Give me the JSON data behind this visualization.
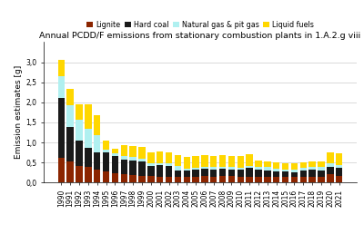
{
  "title": "Annual PCDD/F emissions from stationary combustion plants in 1.A.2.g viii",
  "ylabel": "Emission estimates [g]",
  "years": [
    1990,
    1991,
    1992,
    1993,
    1994,
    1995,
    1996,
    1997,
    1998,
    1999,
    2000,
    2001,
    2002,
    2003,
    2004,
    2005,
    2006,
    2007,
    2008,
    2009,
    2010,
    2011,
    2012,
    2013,
    2014,
    2015,
    2016,
    2017,
    2018,
    2019,
    2020,
    2021
  ],
  "lignite": [
    0.62,
    0.52,
    0.42,
    0.38,
    0.33,
    0.28,
    0.24,
    0.2,
    0.19,
    0.17,
    0.16,
    0.15,
    0.15,
    0.15,
    0.15,
    0.14,
    0.16,
    0.15,
    0.16,
    0.16,
    0.15,
    0.15,
    0.15,
    0.15,
    0.13,
    0.13,
    0.13,
    0.14,
    0.15,
    0.14,
    0.22,
    0.16
  ],
  "hard_coal": [
    1.48,
    0.86,
    0.63,
    0.48,
    0.43,
    0.47,
    0.42,
    0.37,
    0.36,
    0.35,
    0.25,
    0.28,
    0.27,
    0.16,
    0.15,
    0.18,
    0.18,
    0.17,
    0.19,
    0.17,
    0.17,
    0.22,
    0.17,
    0.16,
    0.15,
    0.14,
    0.13,
    0.15,
    0.17,
    0.17,
    0.18,
    0.2
  ],
  "natural_gas": [
    0.55,
    0.55,
    0.52,
    0.48,
    0.42,
    0.08,
    0.08,
    0.08,
    0.08,
    0.08,
    0.06,
    0.06,
    0.05,
    0.1,
    0.05,
    0.05,
    0.06,
    0.06,
    0.05,
    0.06,
    0.05,
    0.05,
    0.07,
    0.07,
    0.07,
    0.06,
    0.07,
    0.07,
    0.06,
    0.07,
    0.07,
    0.08
  ],
  "liquid_fuels": [
    0.4,
    0.4,
    0.38,
    0.62,
    0.5,
    0.22,
    0.1,
    0.28,
    0.27,
    0.28,
    0.28,
    0.28,
    0.28,
    0.28,
    0.28,
    0.28,
    0.28,
    0.28,
    0.28,
    0.28,
    0.28,
    0.28,
    0.15,
    0.15,
    0.15,
    0.15,
    0.15,
    0.15,
    0.15,
    0.15,
    0.28,
    0.28
  ],
  "colors": {
    "lignite": "#8B2500",
    "hard_coal": "#1a1a1a",
    "natural_gas": "#b0f0f0",
    "liquid_fuels": "#FFD700"
  },
  "ylim": [
    0,
    3.5
  ],
  "yticks": [
    0.0,
    0.5,
    1.0,
    1.5,
    2.0,
    2.5,
    3.0
  ],
  "ytick_labels": [
    "0,0",
    "0,5",
    "1,0",
    "1,5",
    "2,0",
    "2,5",
    "3,0"
  ],
  "legend_labels": [
    "Lignite",
    "Hard coal",
    "Natural gas & pit gas",
    "Liquid fuels"
  ],
  "background_color": "#ffffff",
  "title_fontsize": 6.8,
  "legend_fontsize": 5.8,
  "tick_fontsize": 5.5,
  "ylabel_fontsize": 6.5
}
